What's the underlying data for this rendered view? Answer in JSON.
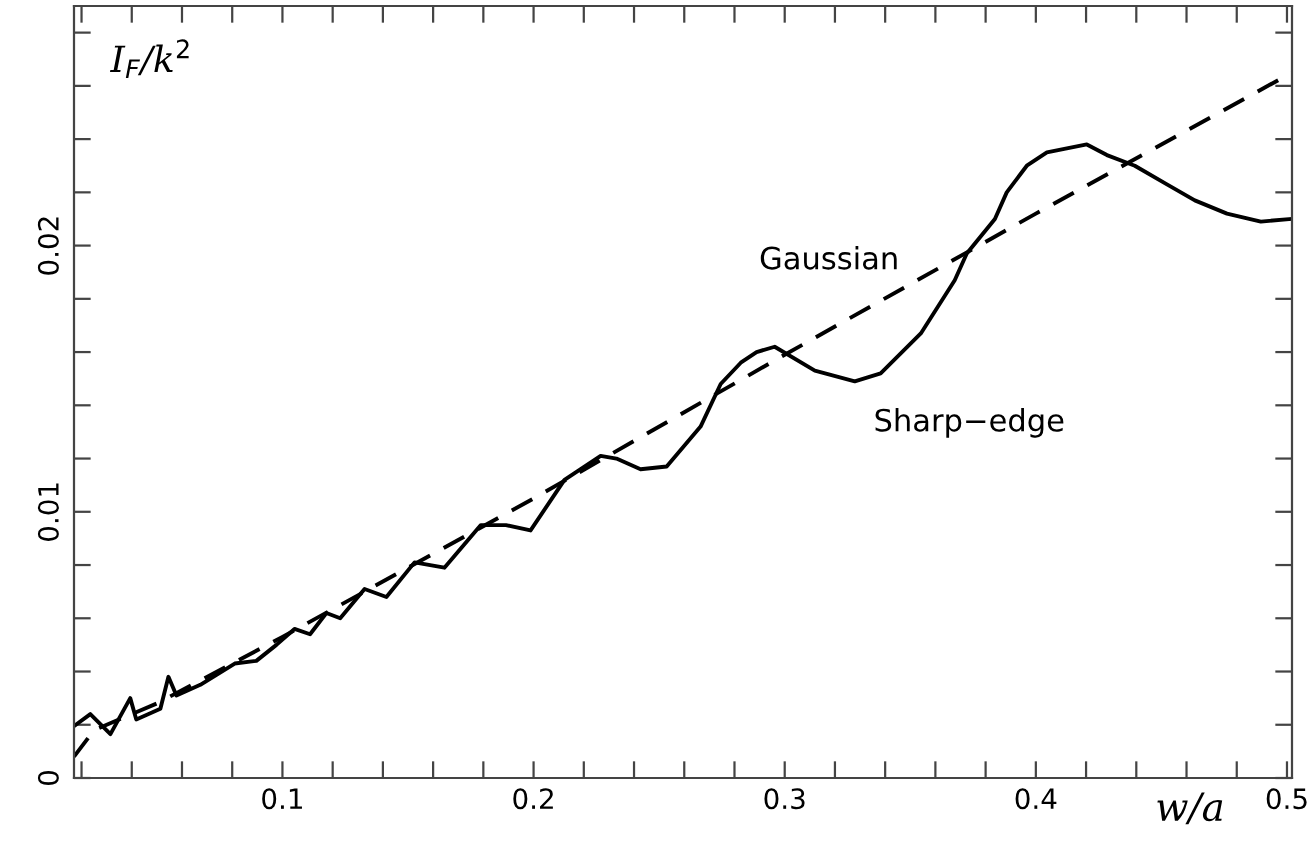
{
  "chart_data": {
    "type": "line",
    "xlabel": "w/a",
    "ylabel": "I$_{F}$/k$^{2}$",
    "xlim": [
      0.017,
      0.502
    ],
    "ylim": [
      0,
      0.029
    ],
    "xticks": [
      {
        "value": 0.02,
        "label": null
      },
      {
        "value": 0.04,
        "label": null
      },
      {
        "value": 0.06,
        "label": null
      },
      {
        "value": 0.08,
        "label": null
      },
      0.1,
      {
        "value": 0.12,
        "label": null
      },
      {
        "value": 0.14,
        "label": null
      },
      {
        "value": 0.16,
        "label": null
      },
      {
        "value": 0.18,
        "label": null
      },
      0.2,
      {
        "value": 0.22,
        "label": null
      },
      {
        "value": 0.24,
        "label": null
      },
      {
        "value": 0.26,
        "label": null
      },
      {
        "value": 0.28,
        "label": null
      },
      0.3,
      {
        "value": 0.32,
        "label": null
      },
      {
        "value": 0.34,
        "label": null
      },
      {
        "value": 0.36,
        "label": null
      },
      {
        "value": 0.38,
        "label": null
      },
      0.4,
      {
        "value": 0.42,
        "label": null
      },
      {
        "value": 0.44,
        "label": null
      },
      {
        "value": 0.46,
        "label": null
      },
      {
        "value": 0.48,
        "label": null
      },
      0.5
    ],
    "yticks": [
      0,
      {
        "value": 0.002,
        "label": null
      },
      {
        "value": 0.004,
        "label": null
      },
      {
        "value": 0.006,
        "label": null
      },
      {
        "value": 0.008,
        "label": null
      },
      0.01,
      {
        "value": 0.012,
        "label": null
      },
      {
        "value": 0.014,
        "label": null
      },
      {
        "value": 0.016,
        "label": null
      },
      {
        "value": 0.018,
        "label": null
      },
      0.02,
      {
        "value": 0.022,
        "label": null
      },
      {
        "value": 0.024,
        "label": null
      },
      {
        "value": 0.026,
        "label": null
      },
      {
        "value": 0.028,
        "label": null
      }
    ],
    "grid": false,
    "legend": false,
    "marker": "none",
    "series": [
      {
        "name": "Gaussian",
        "color": "#000000",
        "line_style": "dashed",
        "x": [
          0.017,
          0.025,
          0.05,
          0.1,
          0.2,
          0.3,
          0.4,
          0.502
        ],
        "values": [
          0.0008,
          0.0018,
          0.0028,
          0.0053,
          0.0105,
          0.0159,
          0.0212,
          0.0265
        ]
      },
      {
        "name": "Sharp−edge",
        "color": "#000000",
        "line_style": "solid",
        "x": [
          0.017,
          0.0235,
          0.0315,
          0.0394,
          0.0418,
          0.0514,
          0.0546,
          0.0578,
          0.0673,
          0.081,
          0.0896,
          0.0976,
          0.1048,
          0.111,
          0.1175,
          0.123,
          0.1327,
          0.1414,
          0.1526,
          0.1645,
          0.179,
          0.189,
          0.1988,
          0.2123,
          0.2267,
          0.233,
          0.2426,
          0.253,
          0.2665,
          0.2745,
          0.2825,
          0.2888,
          0.296,
          0.312,
          0.3279,
          0.3382,
          0.3542,
          0.3677,
          0.3725,
          0.3837,
          0.3884,
          0.3964,
          0.4044,
          0.4203,
          0.4283,
          0.4394,
          0.4522,
          0.4633,
          0.4761,
          0.4896,
          0.5016
        ],
        "values": [
          0.00195,
          0.0024,
          0.00165,
          0.003,
          0.0022,
          0.0026,
          0.0038,
          0.0031,
          0.0035,
          0.0043,
          0.0044,
          0.005,
          0.0056,
          0.0054,
          0.0062,
          0.006,
          0.0071,
          0.0068,
          0.0081,
          0.0079,
          0.0095,
          0.0095,
          0.0093,
          0.0112,
          0.0121,
          0.012,
          0.0116,
          0.0117,
          0.0132,
          0.0148,
          0.0156,
          0.016,
          0.0162,
          0.0153,
          0.0149,
          0.0152,
          0.0167,
          0.0187,
          0.0197,
          0.021,
          0.022,
          0.023,
          0.0235,
          0.0238,
          0.0234,
          0.023,
          0.0223,
          0.0217,
          0.0212,
          0.0209,
          0.021
        ]
      }
    ]
  }
}
